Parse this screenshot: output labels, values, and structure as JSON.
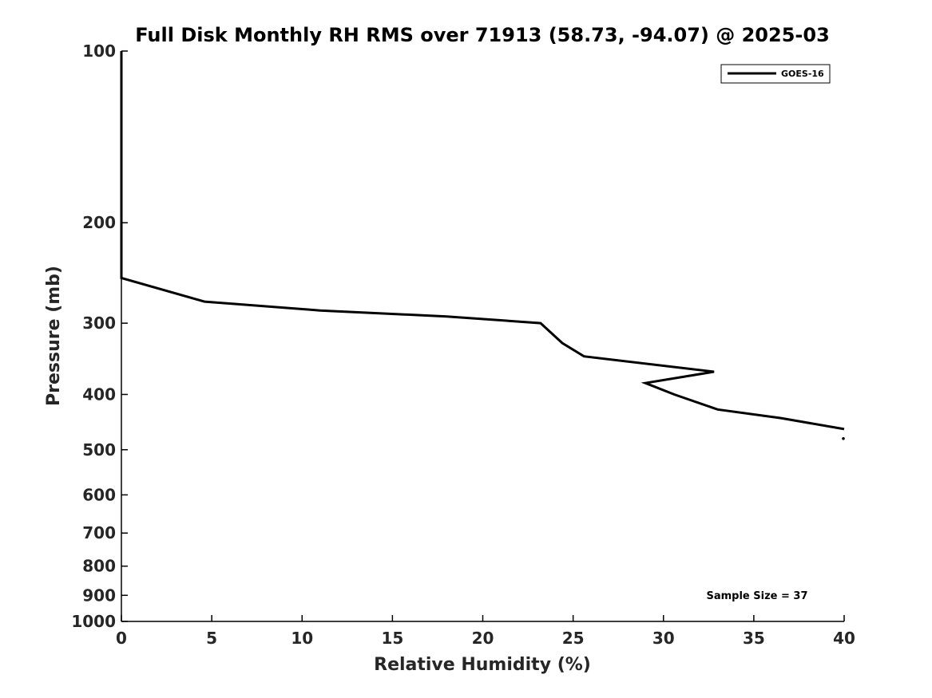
{
  "chart_data": {
    "type": "line",
    "title": "Full Disk Monthly RH RMS over 71913 (58.73, -94.07) @ 2025-03",
    "xlabel": "Relative Humidity (%)",
    "ylabel": "Pressure (mb)",
    "xlim": [
      0,
      40
    ],
    "ylim": [
      100,
      1000
    ],
    "y_scale": "log",
    "y_reversed": true,
    "x_ticks": [
      "0",
      "5",
      "10",
      "15",
      "20",
      "25",
      "30",
      "35",
      "40"
    ],
    "y_ticks": [
      "100",
      "200",
      "300",
      "400",
      "500",
      "600",
      "700",
      "800",
      "900",
      "1000"
    ],
    "grid": false,
    "legend_position": "top-right",
    "series": [
      {
        "name": "GOES-16",
        "color": "#000000",
        "segments": [
          {
            "x": [
              0,
              0,
              0,
              0,
              4.6,
              11.0,
              18.0,
              23.2,
              24.4,
              25.6,
              32.8,
              29.0,
              30.6,
              33.0,
              36.5,
              40.0
            ],
            "y": [
              100,
              150,
              200,
              250,
              275,
              285,
              292,
              300,
              325,
              343,
              365,
              382,
              400,
              425,
              440,
              460
            ]
          },
          {
            "x": [
              40.0
            ],
            "y": [
              478
            ]
          }
        ]
      }
    ],
    "annotation": "Sample Size = 37"
  }
}
